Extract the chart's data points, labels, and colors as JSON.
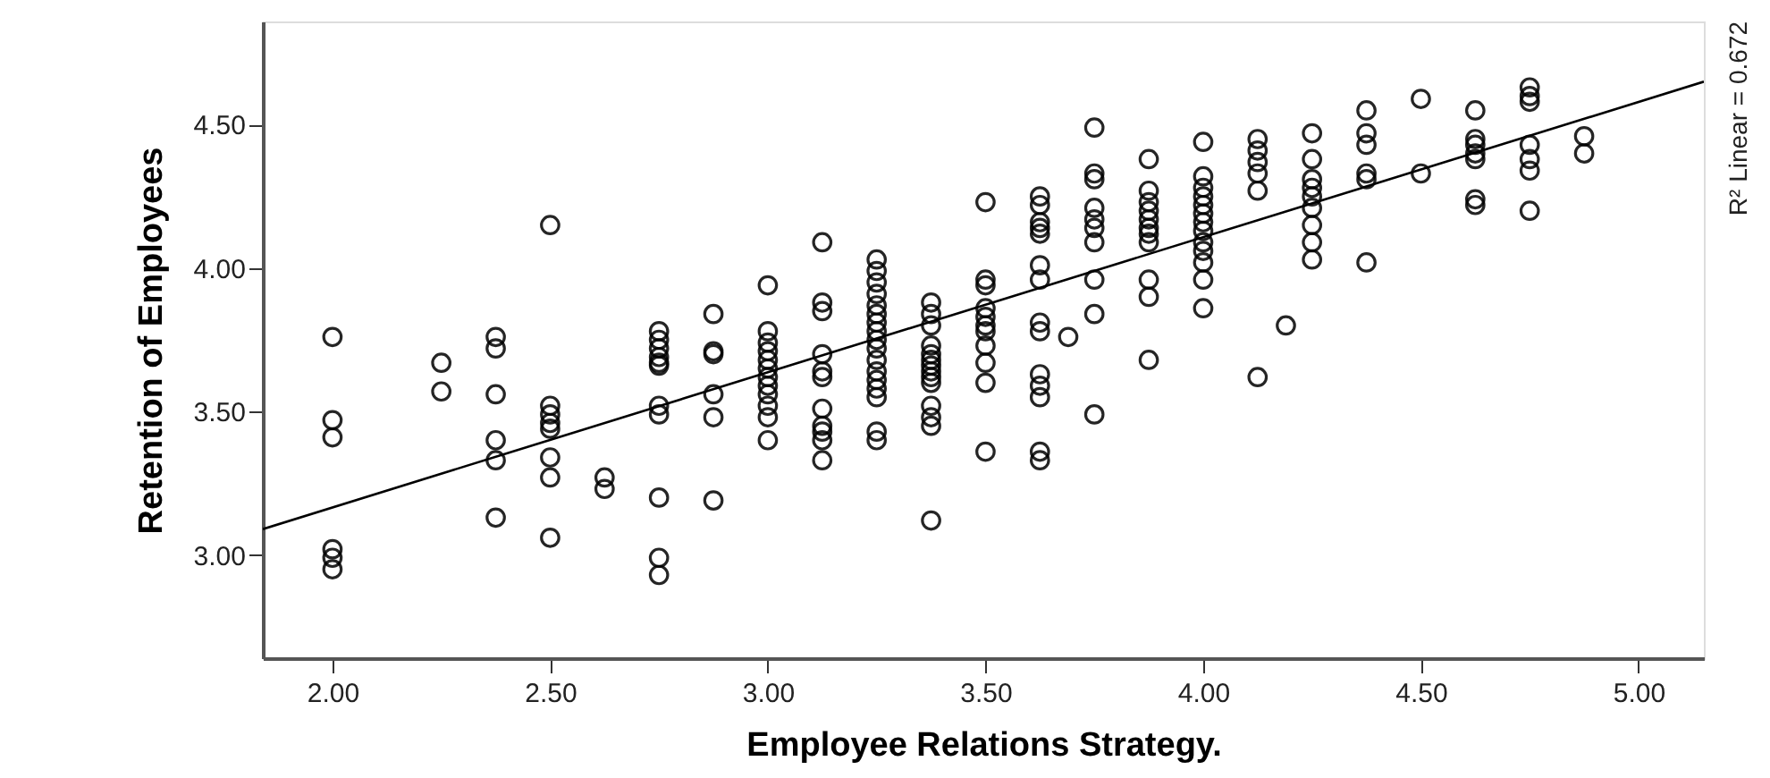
{
  "chart_data": {
    "type": "scatter",
    "xlabel": "Employee Relations Strategy.",
    "ylabel": "Retention of Employees",
    "annotations": [
      "R² Linear = 0.672"
    ],
    "xlim": [
      1.84,
      5.15
    ],
    "ylim": [
      2.64,
      4.86
    ],
    "xticks": [
      {
        "value": 2,
        "label": "2.00"
      },
      {
        "value": 2.5,
        "label": "2.50"
      },
      {
        "value": 3,
        "label": "3.00"
      },
      {
        "value": 3.5,
        "label": "3.50"
      },
      {
        "value": 4,
        "label": "4.00"
      },
      {
        "value": 4.5,
        "label": "4.50"
      },
      {
        "value": 5,
        "label": "5.00"
      }
    ],
    "yticks": [
      {
        "value": 3,
        "label": "3.00"
      },
      {
        "value": 3.5,
        "label": "3.50"
      },
      {
        "value": 4,
        "label": "4.00"
      },
      {
        "value": 4.5,
        "label": "4.50"
      }
    ],
    "grid": false,
    "marker": "circle",
    "series": [
      {
        "color": "#000000",
        "x": [
          2,
          2,
          2,
          2,
          2,
          2,
          2.25,
          2.25,
          2.375,
          2.375,
          2.375,
          2.375,
          2.375,
          2.375,
          2.5,
          2.5,
          2.5,
          2.5,
          2.5,
          2.5,
          2.5,
          2.5,
          2.625,
          2.625,
          2.75,
          2.75,
          2.75,
          2.75,
          2.75,
          2.75,
          2.75,
          2.75,
          2.75,
          2.75,
          2.75,
          2.875,
          2.875,
          2.875,
          2.875,
          2.875,
          2.875,
          3,
          3,
          3,
          3,
          3,
          3,
          3,
          3,
          3,
          3,
          3,
          3,
          3.125,
          3.125,
          3.125,
          3.125,
          3.125,
          3.125,
          3.125,
          3.125,
          3.125,
          3.125,
          3.125,
          3.25,
          3.25,
          3.25,
          3.25,
          3.25,
          3.25,
          3.25,
          3.25,
          3.25,
          3.25,
          3.25,
          3.25,
          3.25,
          3.25,
          3.25,
          3.25,
          3.25,
          3.375,
          3.375,
          3.375,
          3.375,
          3.375,
          3.375,
          3.375,
          3.375,
          3.375,
          3.375,
          3.375,
          3.375,
          3.375,
          3.375,
          3.5,
          3.5,
          3.5,
          3.5,
          3.5,
          3.5,
          3.5,
          3.5,
          3.5,
          3.5,
          3.5,
          3.625,
          3.625,
          3.625,
          3.625,
          3.625,
          3.625,
          3.625,
          3.625,
          3.625,
          3.625,
          3.625,
          3.625,
          3.625,
          3.625,
          3.69,
          3.75,
          3.75,
          3.75,
          3.75,
          3.75,
          3.75,
          3.75,
          3.75,
          3.75,
          3.75,
          3.875,
          3.875,
          3.875,
          3.875,
          3.875,
          3.875,
          3.875,
          3.875,
          3.875,
          3.875,
          3.875,
          4,
          4,
          4,
          4,
          4,
          4,
          4,
          4,
          4,
          4,
          4,
          4,
          4,
          4.125,
          4.125,
          4.125,
          4.125,
          4.125,
          4.125,
          4.19,
          4.25,
          4.25,
          4.25,
          4.25,
          4.25,
          4.25,
          4.25,
          4.25,
          4.25,
          4.375,
          4.375,
          4.375,
          4.375,
          4.375,
          4.375,
          4.5,
          4.5,
          4.625,
          4.625,
          4.625,
          4.625,
          4.625,
          4.625,
          4.625,
          4.75,
          4.75,
          4.75,
          4.75,
          4.75,
          4.75,
          4.75,
          4.875,
          4.875
        ],
        "values": [
          3.76,
          3.47,
          3.41,
          3.02,
          2.99,
          2.95,
          3.67,
          3.57,
          3.76,
          3.72,
          3.56,
          3.4,
          3.33,
          3.13,
          4.15,
          3.52,
          3.49,
          3.46,
          3.44,
          3.34,
          3.27,
          3.06,
          3.27,
          3.23,
          3.78,
          3.75,
          3.72,
          3.69,
          3.67,
          3.66,
          3.52,
          3.49,
          3.2,
          2.99,
          2.93,
          3.84,
          3.71,
          3.7,
          3.56,
          3.48,
          3.19,
          3.94,
          3.78,
          3.74,
          3.71,
          3.68,
          3.65,
          3.62,
          3.59,
          3.56,
          3.52,
          3.48,
          3.4,
          4.09,
          3.88,
          3.85,
          3.7,
          3.64,
          3.62,
          3.51,
          3.45,
          3.43,
          3.4,
          3.33,
          4.03,
          3.99,
          3.95,
          3.91,
          3.87,
          3.84,
          3.81,
          3.78,
          3.75,
          3.72,
          3.68,
          3.64,
          3.61,
          3.58,
          3.55,
          3.43,
          3.4,
          3.88,
          3.84,
          3.8,
          3.73,
          3.7,
          3.68,
          3.66,
          3.64,
          3.62,
          3.6,
          3.52,
          3.48,
          3.45,
          3.12,
          4.23,
          3.96,
          3.94,
          3.86,
          3.83,
          3.8,
          3.78,
          3.73,
          3.67,
          3.6,
          3.36,
          4.25,
          4.22,
          4.16,
          4.14,
          4.12,
          4.01,
          3.96,
          3.81,
          3.78,
          3.63,
          3.59,
          3.55,
          3.36,
          3.33,
          3.76,
          4.49,
          4.33,
          4.31,
          4.21,
          4.17,
          4.14,
          4.09,
          3.96,
          3.84,
          3.49,
          4.38,
          4.27,
          4.23,
          4.2,
          4.17,
          4.14,
          4.12,
          4.09,
          3.96,
          3.9,
          3.68,
          4.44,
          4.32,
          4.28,
          4.25,
          4.22,
          4.19,
          4.16,
          4.13,
          4.09,
          4.06,
          4.02,
          3.96,
          3.86,
          4.45,
          4.41,
          4.37,
          4.33,
          4.27,
          3.62,
          3.8,
          4.47,
          4.38,
          4.31,
          4.28,
          4.25,
          4.21,
          4.15,
          4.09,
          4.03,
          4.55,
          4.47,
          4.43,
          4.33,
          4.31,
          4.02,
          4.59,
          4.33,
          4.55,
          4.45,
          4.43,
          4.4,
          4.38,
          4.24,
          4.22,
          4.63,
          4.6,
          4.58,
          4.43,
          4.38,
          4.34,
          4.2,
          4.46,
          4.4
        ]
      },
      {
        "type": "line",
        "color": "#000000",
        "marker": "none",
        "line_style": "solid",
        "x": [
          1.84,
          5.15
        ],
        "values": [
          3.09,
          4.65
        ]
      }
    ]
  }
}
